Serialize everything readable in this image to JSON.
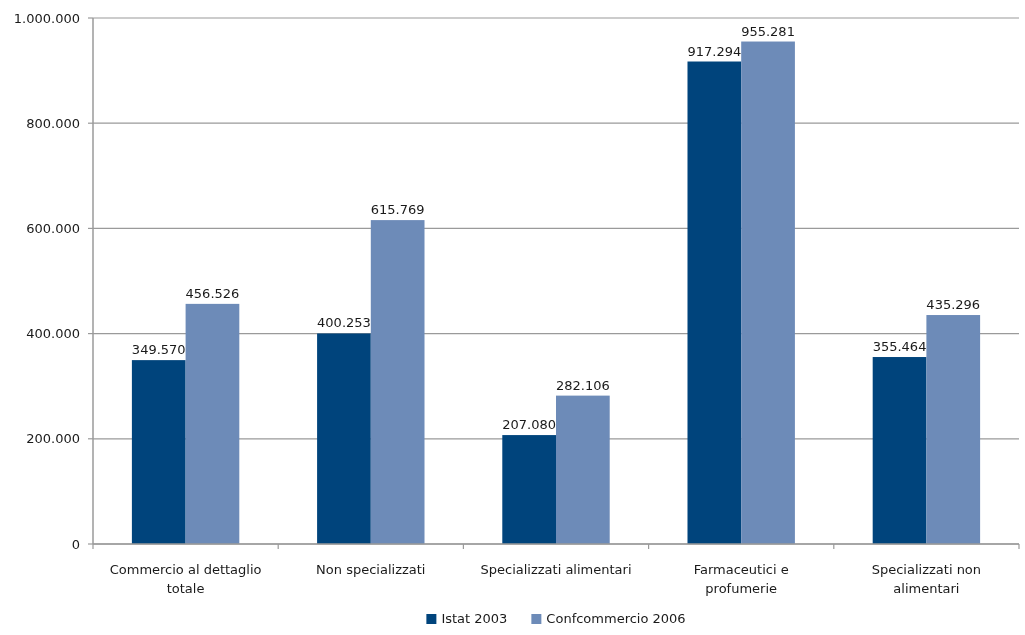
{
  "chart_data": {
    "type": "bar",
    "categories": [
      "Commercio al dettaglio totale",
      "Non specializzati",
      "Specializzati alimentari",
      "Farmaceutici e profumerie",
      "Specializzati non alimentari"
    ],
    "series": [
      {
        "name": "Istat 2003",
        "color": "#00447c",
        "values": [
          349570,
          400253,
          207080,
          917294,
          355464
        ],
        "value_labels": [
          "349.570",
          "400.253",
          "207.080",
          "917.294",
          "355.464"
        ]
      },
      {
        "name": "Confcommercio 2006",
        "color": "#6d8bb8",
        "values": [
          456526,
          615769,
          282106,
          955281,
          435296
        ],
        "value_labels": [
          "456.526",
          "615.769",
          "282.106",
          "955.281",
          "435.296"
        ]
      }
    ],
    "ylim": [
      0,
      1000000
    ],
    "yticks": [
      0,
      {
        "value": 200000,
        "label": "200.000"
      },
      {
        "value": 400000,
        "label": "400.000"
      },
      {
        "value": 600000,
        "label": "600.000"
      },
      {
        "value": 800000,
        "label": "800.000"
      },
      {
        "value": 1000000,
        "label": "1.000.000"
      }
    ],
    "grid": "y",
    "legend": "bottom"
  }
}
